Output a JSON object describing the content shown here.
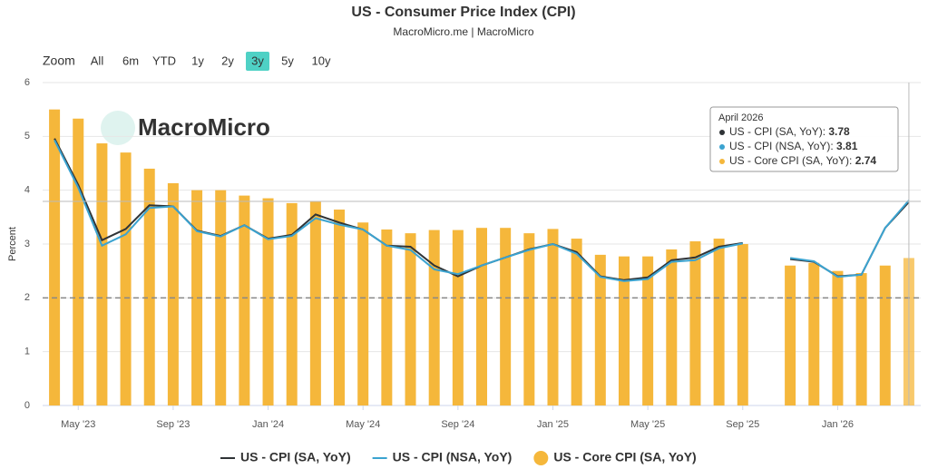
{
  "chart_data": {
    "type": "bar_line",
    "title": "US - Consumer Price Index (CPI)",
    "subtitle": "MacroMicro.me | MacroMicro",
    "watermark": "MacroMicro",
    "y_label": "Percent",
    "range_selector": {
      "label": "Zoom",
      "buttons": [
        "All",
        "6m",
        "YTD",
        "1y",
        "2y",
        "3y",
        "5y",
        "10y"
      ],
      "selected": "3y"
    },
    "categories": [
      null,
      "May '23",
      null,
      null,
      null,
      "Sep '23",
      null,
      null,
      null,
      "Jan '24",
      null,
      null,
      null,
      "May '24",
      null,
      null,
      null,
      "Sep '24",
      null,
      null,
      null,
      "Jan '25",
      null,
      null,
      null,
      "May '25",
      null,
      null,
      null,
      "Sep '25",
      null,
      null,
      null,
      "Jan '26",
      null,
      null,
      null
    ],
    "series": [
      {
        "name": "US - CPI (SA, YoY)",
        "type": "line",
        "color": "#2f3336",
        "values": [
          4.96,
          4.1,
          3.07,
          3.28,
          3.72,
          3.7,
          3.25,
          3.15,
          3.35,
          3.1,
          3.17,
          3.55,
          3.4,
          3.27,
          2.97,
          2.95,
          2.6,
          2.4,
          2.6,
          2.75,
          2.9,
          3.0,
          2.85,
          2.4,
          2.33,
          2.38,
          2.7,
          2.75,
          2.95,
          3.02,
          null,
          2.72,
          2.67,
          2.4,
          2.43,
          3.3,
          3.78
        ]
      },
      {
        "name": "US - CPI (NSA, YoY)",
        "type": "line",
        "color": "#3ba3d0",
        "values": [
          4.93,
          4.05,
          2.97,
          3.18,
          3.67,
          3.7,
          3.24,
          3.14,
          3.35,
          3.09,
          3.15,
          3.48,
          3.36,
          3.27,
          2.97,
          2.89,
          2.53,
          2.44,
          2.6,
          2.75,
          2.89,
          3.0,
          2.82,
          2.39,
          2.31,
          2.35,
          2.67,
          2.7,
          2.92,
          3.01,
          null,
          2.74,
          2.68,
          2.39,
          2.43,
          3.3,
          3.81
        ]
      },
      {
        "name": "US - Core CPI (SA, YoY)",
        "type": "bar",
        "color": "#f5b73b",
        "values": [
          5.5,
          5.33,
          4.87,
          4.7,
          4.4,
          4.13,
          4.0,
          4.0,
          3.9,
          3.85,
          3.76,
          3.8,
          3.64,
          3.4,
          3.27,
          3.2,
          3.26,
          3.26,
          3.3,
          3.3,
          3.2,
          3.28,
          3.1,
          2.8,
          2.77,
          2.77,
          2.9,
          3.05,
          3.1,
          3.0,
          null,
          2.6,
          2.65,
          2.5,
          2.46,
          2.6,
          2.74
        ]
      }
    ],
    "reference_line": 2,
    "ylim": [
      0,
      6
    ],
    "yticks": [
      0,
      1,
      2,
      3,
      4,
      5,
      6
    ],
    "grid": true,
    "legend": "bottom",
    "tooltip": {
      "title": "April 2026"
    }
  }
}
